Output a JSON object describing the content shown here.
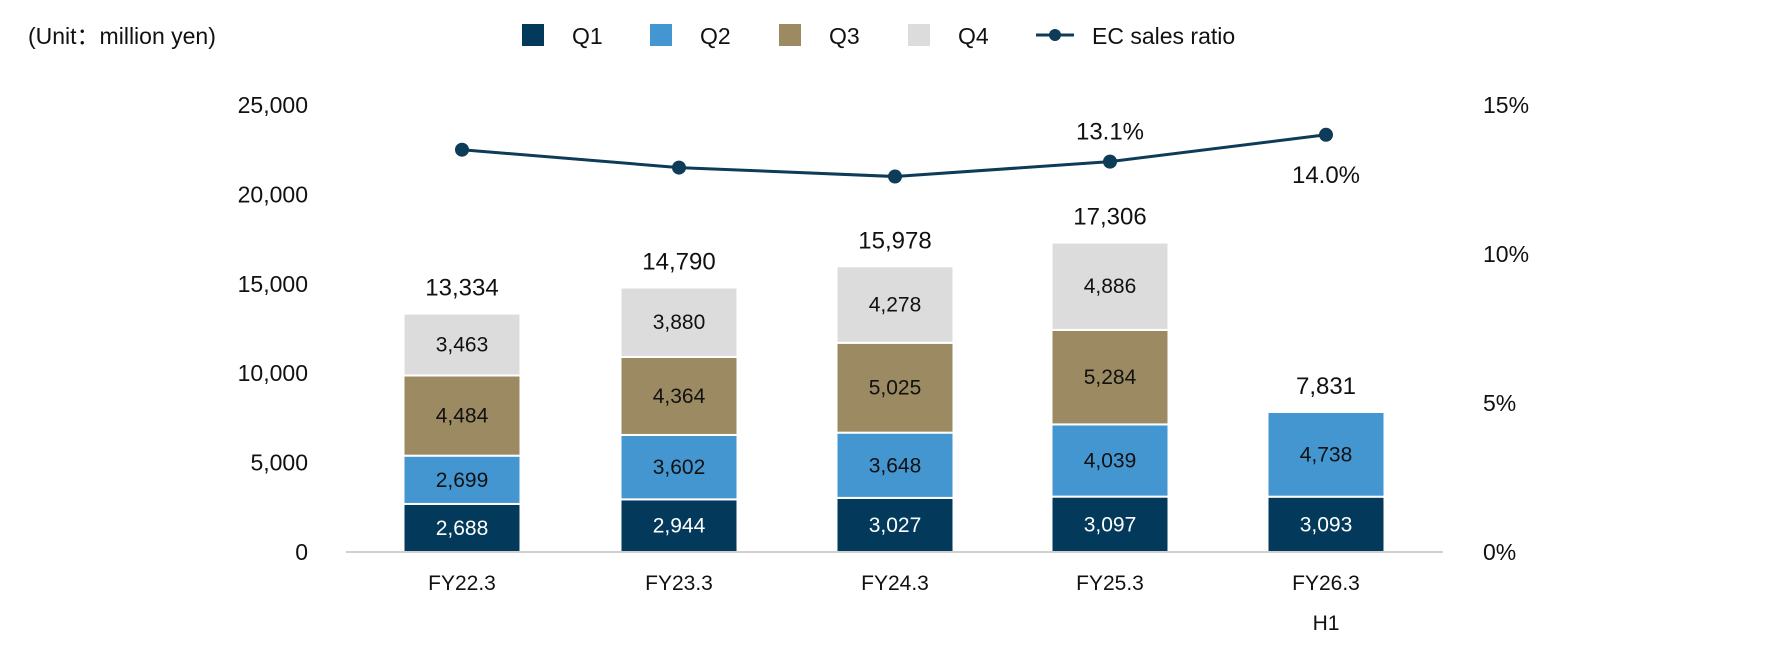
{
  "chart_data": {
    "type": "bar",
    "stacked": true,
    "unit_label": "(Unit：million yen)",
    "categories": [
      "FY22.3",
      "FY23.3",
      "FY24.3",
      "FY25.3",
      "FY26.3\nH1"
    ],
    "series": [
      {
        "name": "Q1",
        "color": "#033a5b",
        "values": [
          2688,
          2944,
          3027,
          3097,
          3093
        ],
        "labels": [
          "2,688",
          "2,944",
          "3,027",
          "3,097",
          "3,093"
        ]
      },
      {
        "name": "Q2",
        "color": "#4396d0",
        "values": [
          2699,
          3602,
          3648,
          4039,
          4738
        ],
        "labels": [
          "2,699",
          "3,602",
          "3,648",
          "4,039",
          "4,738"
        ]
      },
      {
        "name": "Q3",
        "color": "#9c8a62",
        "values": [
          4484,
          4364,
          5025,
          5284,
          null
        ],
        "labels": [
          "4,484",
          "4,364",
          "5,025",
          "5,284",
          ""
        ]
      },
      {
        "name": "Q4",
        "color": "#dcdcdc",
        "values": [
          3463,
          3880,
          4278,
          4886,
          null
        ],
        "labels": [
          "3,463",
          "3,880",
          "4,278",
          "4,886",
          ""
        ]
      }
    ],
    "totals": [
      "13,334",
      "14,790",
      "15,978",
      "17,306",
      "7,831"
    ],
    "line_series": {
      "name": "EC sales ratio",
      "color": "#0d3b58",
      "axis": "right",
      "values": [
        13.5,
        12.9,
        12.6,
        13.1,
        14.0
      ],
      "labels": [
        "",
        "",
        "",
        "13.1%",
        "14.0%"
      ]
    },
    "y_left": {
      "range": [
        0,
        25000
      ],
      "ticks": [
        "0",
        "5,000",
        "10,000",
        "15,000",
        "20,000",
        "25,000"
      ]
    },
    "y_right": {
      "range": [
        0,
        15
      ],
      "ticks": [
        "0%",
        "5%",
        "10%",
        "15%"
      ]
    },
    "grid": false,
    "legend_position": "top"
  }
}
